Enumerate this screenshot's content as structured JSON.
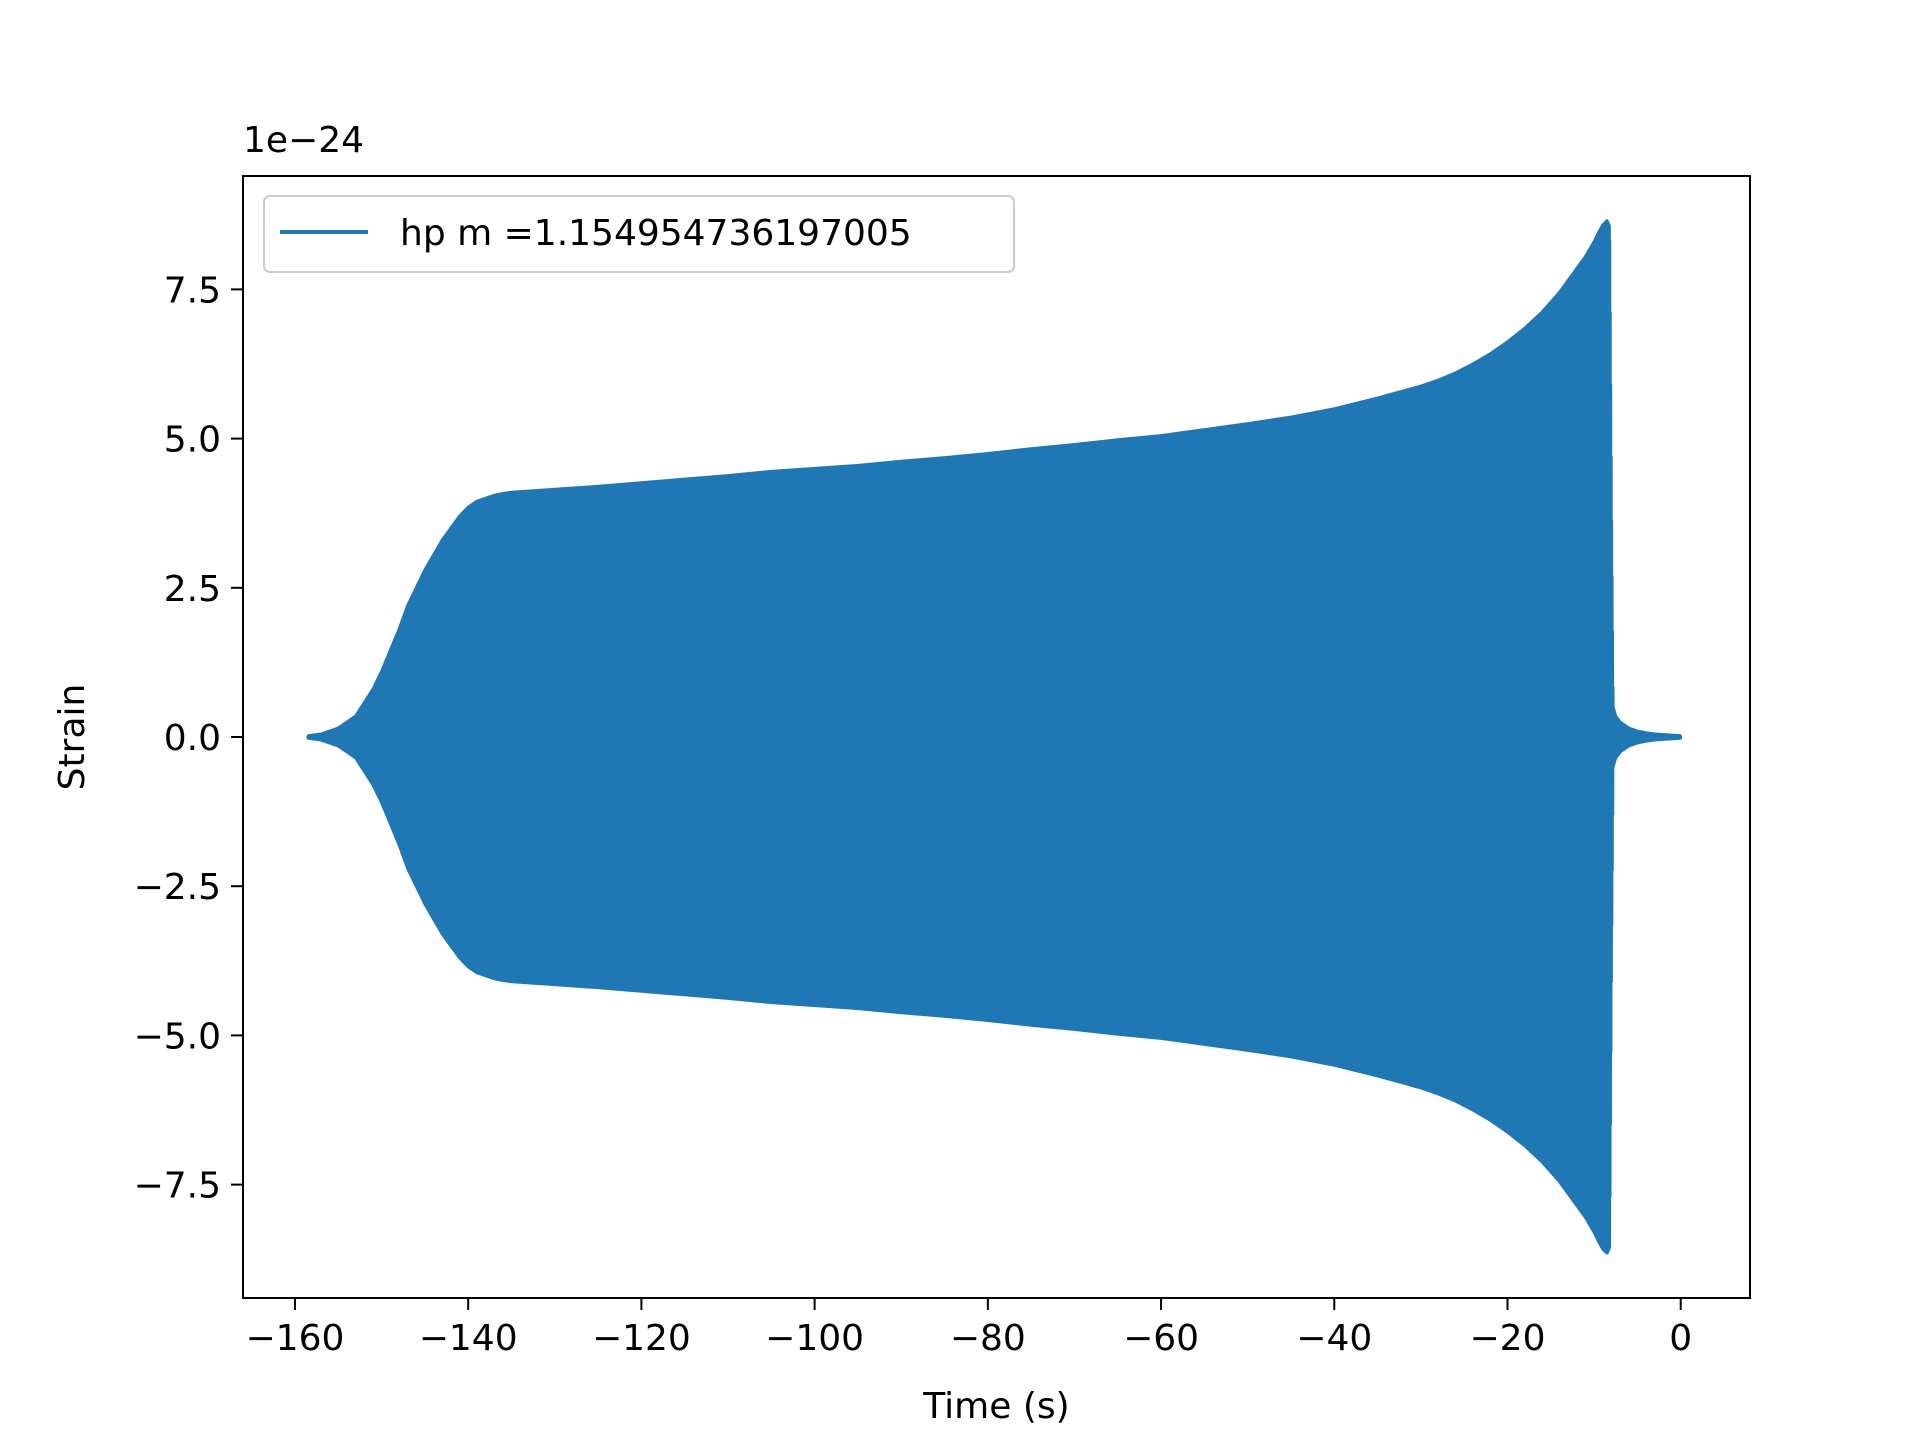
{
  "chart_data": {
    "type": "line",
    "xlabel": "Time (s)",
    "ylabel": "Strain",
    "offset_label": "1e−24",
    "xlim": [
      -166,
      8
    ],
    "ylim": [
      -9.4,
      9.4
    ],
    "x_ticks": [
      -160,
      -140,
      -120,
      -100,
      -80,
      -60,
      -40,
      -20,
      0
    ],
    "x_tick_labels": [
      "−160",
      "−140",
      "−120",
      "−100",
      "−80",
      "−60",
      "−40",
      "−20",
      "0"
    ],
    "y_ticks": [
      -7.5,
      -5.0,
      -2.5,
      0.0,
      2.5,
      5.0,
      7.5
    ],
    "y_tick_labels": [
      "−7.5",
      "−5.0",
      "−2.5",
      "0.0",
      "2.5",
      "5.0",
      "7.5"
    ],
    "grid": false,
    "legend": {
      "placement": "upper-left",
      "entries": [
        "hp m =1.154954736197005"
      ]
    },
    "series": [
      {
        "name": "hp m =1.154954736197005",
        "color": "#1f77b4",
        "envelope": {
          "time": [
            -158.5,
            -157,
            -155,
            -153,
            -151,
            -150,
            -149,
            -148,
            -147,
            -146,
            -145,
            -144,
            -143,
            -142,
            -141,
            -140,
            -139,
            -138,
            -137,
            -136,
            -135,
            -130,
            -125,
            -120,
            -115,
            -110,
            -105,
            -100,
            -95,
            -90,
            -85,
            -80,
            -75,
            -70,
            -65,
            -60,
            -55,
            -50,
            -45,
            -40,
            -35,
            -30,
            -28,
            -26,
            -24,
            -22,
            -20,
            -18,
            -16,
            -14,
            -12,
            -11,
            -10,
            -9.5,
            -9,
            -8.5,
            -8.2,
            -8.0,
            -7.8,
            -7.5,
            -7,
            -6,
            -5,
            -4,
            -3,
            -2,
            -1,
            0
          ],
          "amplitude": [
            0.02,
            0.05,
            0.15,
            0.35,
            0.8,
            1.1,
            1.45,
            1.8,
            2.2,
            2.5,
            2.8,
            3.05,
            3.3,
            3.5,
            3.7,
            3.85,
            3.95,
            4.0,
            4.05,
            4.08,
            4.1,
            4.15,
            4.2,
            4.26,
            4.32,
            4.38,
            4.45,
            4.5,
            4.55,
            4.62,
            4.68,
            4.75,
            4.83,
            4.9,
            4.98,
            5.05,
            5.15,
            5.25,
            5.36,
            5.5,
            5.68,
            5.88,
            5.98,
            6.1,
            6.25,
            6.42,
            6.62,
            6.85,
            7.12,
            7.45,
            7.85,
            8.05,
            8.3,
            8.45,
            8.58,
            8.65,
            8.55,
            4.0,
            0.5,
            0.35,
            0.25,
            0.15,
            0.1,
            0.07,
            0.05,
            0.04,
            0.03,
            0.02
          ]
        }
      }
    ]
  }
}
